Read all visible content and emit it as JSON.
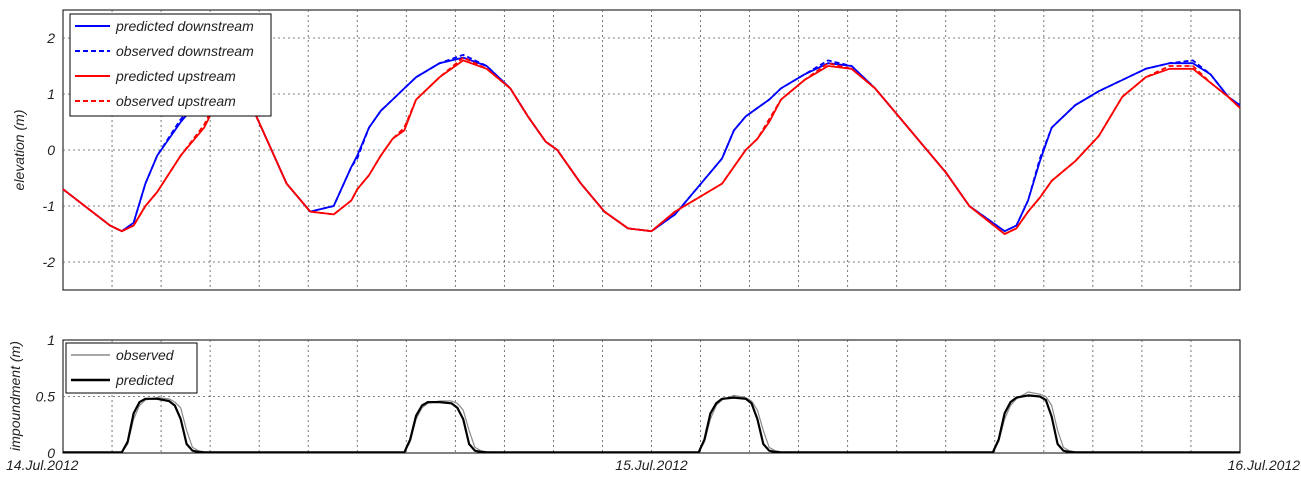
{
  "chart_data": [
    {
      "type": "line",
      "ylabel": "elevation (m)",
      "ylim": [
        -2.5,
        2.5
      ],
      "yticks": [
        "-2",
        "-1",
        "0",
        "1",
        "2"
      ],
      "xlim_days": [
        0,
        2
      ],
      "grid": true,
      "legend_position": "top-left",
      "series": [
        {
          "name": "predicted downstream",
          "color": "#0000ff",
          "dash": "solid",
          "x": [
            0,
            0.08,
            0.1,
            0.12,
            0.14,
            0.16,
            0.2,
            0.24,
            0.28,
            0.3,
            0.32,
            0.35,
            0.38,
            0.42,
            0.46,
            0.49,
            0.5,
            0.52,
            0.54,
            0.56,
            0.58,
            0.6,
            0.64,
            0.68,
            0.72,
            0.76,
            0.79,
            0.82,
            0.84,
            0.86,
            0.88,
            0.92,
            0.96,
            1.0,
            1.04,
            1.08,
            1.12,
            1.14,
            1.16,
            1.18,
            1.2,
            1.22,
            1.26,
            1.3,
            1.34,
            1.38,
            1.42,
            1.46,
            1.5,
            1.54,
            1.6,
            1.62,
            1.64,
            1.66,
            1.68,
            1.72,
            1.76,
            1.8,
            1.84,
            1.88,
            1.92,
            1.95,
            1.98,
            2.0
          ],
          "y": [
            -0.7,
            -1.35,
            -1.45,
            -1.3,
            -0.6,
            -0.1,
            0.5,
            1.0,
            1.35,
            1.2,
            0.8,
            0.1,
            -0.6,
            -1.1,
            -1.0,
            -0.3,
            -0.1,
            0.4,
            0.7,
            0.9,
            1.1,
            1.3,
            1.55,
            1.65,
            1.5,
            1.1,
            0.6,
            0.15,
            0.0,
            -0.3,
            -0.6,
            -1.1,
            -1.4,
            -1.45,
            -1.15,
            -0.65,
            -0.15,
            0.35,
            0.6,
            0.75,
            0.9,
            1.1,
            1.35,
            1.55,
            1.5,
            1.1,
            0.6,
            0.1,
            -0.4,
            -1.0,
            -1.45,
            -1.35,
            -0.9,
            -0.2,
            0.4,
            0.8,
            1.05,
            1.25,
            1.45,
            1.55,
            1.55,
            1.35,
            0.95,
            0.8
          ]
        },
        {
          "name": "observed downstream",
          "color": "#0000ff",
          "dash": "dashed",
          "x": [
            0,
            0.08,
            0.1,
            0.12,
            0.14,
            0.16,
            0.2,
            0.24,
            0.28,
            0.3,
            0.32,
            0.35,
            0.38,
            0.42,
            0.46,
            0.49,
            0.5,
            0.52,
            0.54,
            0.56,
            0.58,
            0.6,
            0.64,
            0.68,
            0.72,
            0.76,
            0.79,
            0.82,
            0.84,
            0.86,
            0.88,
            0.92,
            0.96,
            1.0,
            1.04,
            1.08,
            1.12,
            1.14,
            1.16,
            1.18,
            1.2,
            1.22,
            1.26,
            1.3,
            1.34,
            1.38,
            1.42,
            1.46,
            1.5,
            1.54,
            1.6,
            1.62,
            1.64,
            1.66,
            1.68,
            1.72,
            1.76,
            1.8,
            1.84,
            1.88,
            1.92,
            1.95,
            1.98,
            2.0
          ],
          "y": [
            -0.7,
            -1.35,
            -1.45,
            -1.3,
            -0.6,
            -0.1,
            0.55,
            1.0,
            1.3,
            1.25,
            0.8,
            0.1,
            -0.6,
            -1.1,
            -1.0,
            -0.3,
            -0.15,
            0.4,
            0.7,
            0.9,
            1.1,
            1.3,
            1.55,
            1.7,
            1.5,
            1.1,
            0.6,
            0.15,
            0.0,
            -0.3,
            -0.6,
            -1.1,
            -1.4,
            -1.45,
            -1.15,
            -0.65,
            -0.15,
            0.35,
            0.6,
            0.75,
            0.9,
            1.1,
            1.35,
            1.6,
            1.5,
            1.1,
            0.6,
            0.1,
            -0.4,
            -1.0,
            -1.45,
            -1.35,
            -0.9,
            -0.15,
            0.4,
            0.8,
            1.05,
            1.25,
            1.45,
            1.55,
            1.6,
            1.35,
            0.95,
            0.8
          ]
        },
        {
          "name": "predicted upstream",
          "color": "#ff0000",
          "dash": "solid",
          "x": [
            0,
            0.08,
            0.1,
            0.12,
            0.14,
            0.16,
            0.2,
            0.24,
            0.28,
            0.3,
            0.32,
            0.35,
            0.38,
            0.42,
            0.46,
            0.49,
            0.5,
            0.52,
            0.54,
            0.56,
            0.58,
            0.6,
            0.64,
            0.68,
            0.72,
            0.76,
            0.79,
            0.82,
            0.84,
            0.86,
            0.88,
            0.92,
            0.96,
            1.0,
            1.04,
            1.08,
            1.12,
            1.14,
            1.16,
            1.18,
            1.2,
            1.22,
            1.26,
            1.3,
            1.34,
            1.38,
            1.42,
            1.46,
            1.5,
            1.54,
            1.6,
            1.62,
            1.64,
            1.66,
            1.68,
            1.72,
            1.76,
            1.8,
            1.84,
            1.88,
            1.92,
            1.95,
            1.98,
            2.0
          ],
          "y": [
            -0.7,
            -1.35,
            -1.45,
            -1.35,
            -1.0,
            -0.75,
            -0.1,
            0.4,
            1.25,
            1.15,
            0.8,
            0.1,
            -0.6,
            -1.1,
            -1.15,
            -0.9,
            -0.7,
            -0.45,
            -0.1,
            0.2,
            0.35,
            0.9,
            1.3,
            1.6,
            1.45,
            1.1,
            0.6,
            0.15,
            0.0,
            -0.3,
            -0.6,
            -1.1,
            -1.4,
            -1.45,
            -1.1,
            -0.85,
            -0.6,
            -0.3,
            0.0,
            0.2,
            0.5,
            0.9,
            1.25,
            1.5,
            1.45,
            1.1,
            0.6,
            0.1,
            -0.4,
            -1.0,
            -1.5,
            -1.4,
            -1.1,
            -0.85,
            -0.55,
            -0.2,
            0.25,
            0.95,
            1.3,
            1.45,
            1.45,
            1.2,
            0.95,
            0.75
          ]
        },
        {
          "name": "observed upstream",
          "color": "#ff0000",
          "dash": "dashed",
          "x": [
            0,
            0.08,
            0.1,
            0.12,
            0.14,
            0.16,
            0.2,
            0.24,
            0.28,
            0.3,
            0.32,
            0.35,
            0.38,
            0.42,
            0.46,
            0.49,
            0.5,
            0.52,
            0.54,
            0.56,
            0.58,
            0.6,
            0.64,
            0.68,
            0.72,
            0.76,
            0.79,
            0.82,
            0.84,
            0.86,
            0.88,
            0.92,
            0.96,
            1.0,
            1.04,
            1.08,
            1.12,
            1.14,
            1.16,
            1.18,
            1.2,
            1.22,
            1.26,
            1.3,
            1.34,
            1.38,
            1.42,
            1.46,
            1.5,
            1.54,
            1.6,
            1.62,
            1.64,
            1.66,
            1.68,
            1.72,
            1.76,
            1.8,
            1.84,
            1.88,
            1.92,
            1.95,
            1.98,
            2.0
          ],
          "y": [
            -0.7,
            -1.35,
            -1.45,
            -1.35,
            -1.0,
            -0.75,
            -0.1,
            0.45,
            1.3,
            1.2,
            0.8,
            0.1,
            -0.6,
            -1.1,
            -1.15,
            -0.9,
            -0.7,
            -0.45,
            -0.1,
            0.2,
            0.4,
            0.9,
            1.3,
            1.65,
            1.45,
            1.1,
            0.6,
            0.15,
            0.0,
            -0.3,
            -0.6,
            -1.1,
            -1.4,
            -1.45,
            -1.1,
            -0.85,
            -0.6,
            -0.3,
            0.0,
            0.2,
            0.55,
            0.9,
            1.25,
            1.55,
            1.45,
            1.1,
            0.6,
            0.1,
            -0.4,
            -1.0,
            -1.5,
            -1.4,
            -1.1,
            -0.85,
            -0.55,
            -0.2,
            0.25,
            0.95,
            1.3,
            1.5,
            1.5,
            1.2,
            0.95,
            0.75
          ]
        }
      ]
    },
    {
      "type": "line",
      "ylabel": "impoundment (m)",
      "ylim": [
        0,
        1
      ],
      "yticks": [
        "0",
        "0.5",
        "1"
      ],
      "xlim_days": [
        0,
        2
      ],
      "xticks": [
        "14.Jul.2012",
        "15.Jul.2012",
        "16.Jul.2012"
      ],
      "grid": true,
      "legend_position": "top-left",
      "series": [
        {
          "name": "observed",
          "color": "#8a8a8a",
          "width": 1.2,
          "x": [
            0,
            0.1,
            0.11,
            0.12,
            0.13,
            0.14,
            0.16,
            0.18,
            0.19,
            0.2,
            0.21,
            0.22,
            0.23,
            0.24,
            0.3,
            0.58,
            0.59,
            0.6,
            0.61,
            0.62,
            0.64,
            0.66,
            0.67,
            0.68,
            0.69,
            0.7,
            0.71,
            0.72,
            0.78,
            1.08,
            1.09,
            1.1,
            1.11,
            1.12,
            1.14,
            1.16,
            1.17,
            1.18,
            1.19,
            1.2,
            1.21,
            1.22,
            1.3,
            1.58,
            1.59,
            1.6,
            1.61,
            1.62,
            1.64,
            1.66,
            1.67,
            1.68,
            1.69,
            1.7,
            1.71,
            1.72,
            1.8,
            2.0
          ],
          "y": [
            0.005,
            0.005,
            0.08,
            0.3,
            0.42,
            0.47,
            0.49,
            0.48,
            0.45,
            0.4,
            0.2,
            0.05,
            0.02,
            0.01,
            0.005,
            0.005,
            0.1,
            0.3,
            0.4,
            0.44,
            0.46,
            0.46,
            0.44,
            0.38,
            0.2,
            0.05,
            0.02,
            0.01,
            0.005,
            0.005,
            0.1,
            0.3,
            0.42,
            0.47,
            0.51,
            0.49,
            0.46,
            0.38,
            0.2,
            0.05,
            0.02,
            0.01,
            0.005,
            0.005,
            0.1,
            0.3,
            0.42,
            0.48,
            0.54,
            0.52,
            0.5,
            0.42,
            0.2,
            0.05,
            0.02,
            0.01,
            0.005,
            0.005
          ]
        },
        {
          "name": "predicted",
          "color": "#000000",
          "width": 2.2,
          "x": [
            0,
            0.1,
            0.11,
            0.12,
            0.13,
            0.14,
            0.16,
            0.18,
            0.19,
            0.2,
            0.21,
            0.22,
            0.23,
            0.24,
            0.3,
            0.58,
            0.59,
            0.6,
            0.61,
            0.62,
            0.64,
            0.66,
            0.67,
            0.68,
            0.69,
            0.7,
            0.71,
            0.72,
            0.78,
            1.08,
            1.09,
            1.1,
            1.11,
            1.12,
            1.14,
            1.16,
            1.17,
            1.18,
            1.19,
            1.2,
            1.21,
            1.22,
            1.3,
            1.58,
            1.59,
            1.6,
            1.61,
            1.62,
            1.64,
            1.66,
            1.67,
            1.68,
            1.69,
            1.7,
            1.71,
            1.72,
            1.8,
            2.0
          ],
          "y": [
            0.005,
            0.005,
            0.1,
            0.35,
            0.45,
            0.48,
            0.48,
            0.46,
            0.42,
            0.3,
            0.08,
            0.02,
            0.01,
            0.005,
            0.005,
            0.005,
            0.12,
            0.33,
            0.42,
            0.45,
            0.45,
            0.44,
            0.4,
            0.3,
            0.08,
            0.02,
            0.01,
            0.005,
            0.005,
            0.005,
            0.12,
            0.35,
            0.44,
            0.48,
            0.49,
            0.48,
            0.44,
            0.3,
            0.08,
            0.02,
            0.01,
            0.005,
            0.005,
            0.005,
            0.12,
            0.35,
            0.45,
            0.49,
            0.51,
            0.5,
            0.47,
            0.32,
            0.08,
            0.02,
            0.01,
            0.005,
            0.005,
            0.005
          ]
        }
      ]
    }
  ]
}
